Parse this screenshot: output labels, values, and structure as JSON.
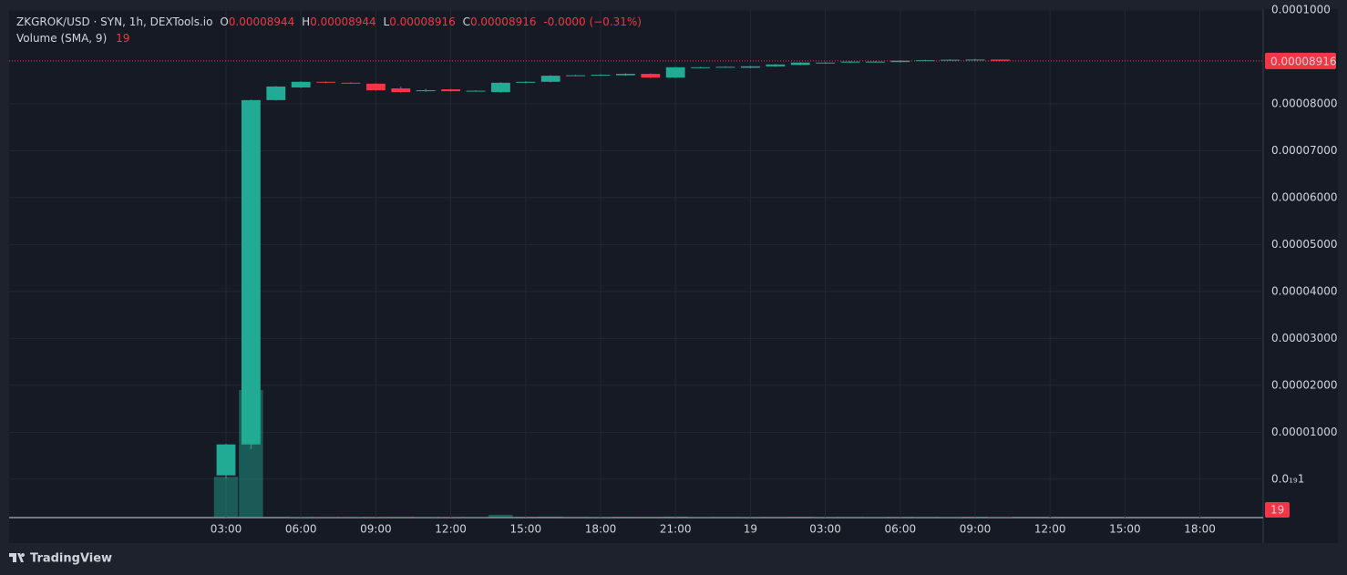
{
  "chart_data": {
    "type": "candlestick",
    "legend": {
      "symbol": "ZKGROK/USD · SYN, 1h, DEXTools.io",
      "o": "O",
      "h": "H",
      "l": "L",
      "c": "C",
      "change": "-0.0000 (−0.31%)"
    },
    "open": [
      8e-07,
      7.4e-06,
      8.08e-05,
      8.35e-05,
      8.47e-05,
      8.45e-05,
      8.43e-05,
      8.33e-05,
      8.27e-05,
      8.31e-05,
      8.27e-05,
      8.25e-05,
      8.45e-05,
      8.47e-05,
      8.6e-05,
      8.61e-05,
      8.61e-05,
      8.64e-05,
      8.56e-05,
      8.77e-05,
      8.78e-05,
      8.77e-05,
      8.8e-05,
      8.83e-05,
      8.87e-05,
      8.88e-05,
      8.89e-05,
      8.89e-05,
      8.92e-05,
      8.93e-05,
      8.93e-05,
      8.944e-05
    ],
    "high": [
      7.5e-06,
      8.09e-05,
      8.38e-05,
      8.48e-05,
      8.48e-05,
      8.46e-05,
      8.44e-05,
      8.37e-05,
      8.32e-05,
      8.32e-05,
      8.29e-05,
      8.46e-05,
      8.48e-05,
      8.61e-05,
      8.62e-05,
      8.63e-05,
      8.65e-05,
      8.65e-05,
      8.79e-05,
      8.79e-05,
      8.8e-05,
      8.81e-05,
      8.85e-05,
      8.89e-05,
      8.89e-05,
      8.91e-05,
      8.91e-05,
      8.93e-05,
      8.94e-05,
      8.95e-05,
      8.96e-05,
      8.944e-05
    ],
    "low": [
      1e-07,
      6.4e-06,
      8.07e-05,
      8.34e-05,
      8.44e-05,
      8.43e-05,
      8.28e-05,
      8.24e-05,
      8.26e-05,
      8.26e-05,
      8.26e-05,
      8.24e-05,
      8.44e-05,
      8.46e-05,
      8.59e-05,
      8.6e-05,
      8.6e-05,
      8.55e-05,
      8.55e-05,
      8.76e-05,
      8.77e-05,
      8.76e-05,
      8.79e-05,
      8.82e-05,
      8.86e-05,
      8.87e-05,
      8.88e-05,
      8.88e-05,
      8.91e-05,
      8.92e-05,
      8.92e-05,
      8.916e-05
    ],
    "close": [
      7.4e-06,
      8.08e-05,
      8.37e-05,
      8.47e-05,
      8.45e-05,
      8.44e-05,
      8.29e-05,
      8.25e-05,
      8.29e-05,
      8.27e-05,
      8.28e-05,
      8.45e-05,
      8.47e-05,
      8.6e-05,
      8.61e-05,
      8.62e-05,
      8.64e-05,
      8.56e-05,
      8.78e-05,
      8.78e-05,
      8.79e-05,
      8.8e-05,
      8.84e-05,
      8.88e-05,
      8.88e-05,
      8.9e-05,
      8.9e-05,
      8.92e-05,
      8.93e-05,
      8.94e-05,
      8.944e-05,
      8.916e-05
    ],
    "up_color": "#22ab94",
    "down_color": "#f23645",
    "volume": {
      "name": "Volume (SMA, 9)",
      "values": [
        1600,
        5000,
        30,
        20,
        15,
        20,
        25,
        30,
        20,
        15,
        20,
        110,
        30,
        40,
        25,
        20,
        30,
        35,
        40,
        20,
        15,
        20,
        25,
        30,
        20,
        15,
        20,
        25,
        15,
        20,
        30,
        19
      ]
    },
    "vlim": [
      0,
      6000
    ],
    "ylim": [
      -8.2e-06,
      0.0001002
    ],
    "yticks": [
      {
        "value": 1e-20,
        "label": "0.0₁₉1"
      },
      {
        "value": 1e-05,
        "label": "0.00001000"
      },
      {
        "value": 2e-05,
        "label": "0.00002000"
      },
      {
        "value": 3e-05,
        "label": "0.00003000"
      },
      {
        "value": 4e-05,
        "label": "0.00004000"
      },
      {
        "value": 5e-05,
        "label": "0.00005000"
      },
      {
        "value": 6e-05,
        "label": "0.00006000"
      },
      {
        "value": 7e-05,
        "label": "0.00007000"
      },
      {
        "value": 8e-05,
        "label": "0.00008000"
      },
      {
        "value": 0.0001,
        "label": "0.0001000"
      }
    ],
    "xticks": [
      "03:00",
      "06:00",
      "09:00",
      "12:00",
      "15:00",
      "18:00",
      "21:00",
      "19",
      "03:00",
      "06:00",
      "09:00",
      "12:00",
      "15:00",
      "18:00"
    ],
    "grid": true,
    "branding": "TradingView"
  }
}
